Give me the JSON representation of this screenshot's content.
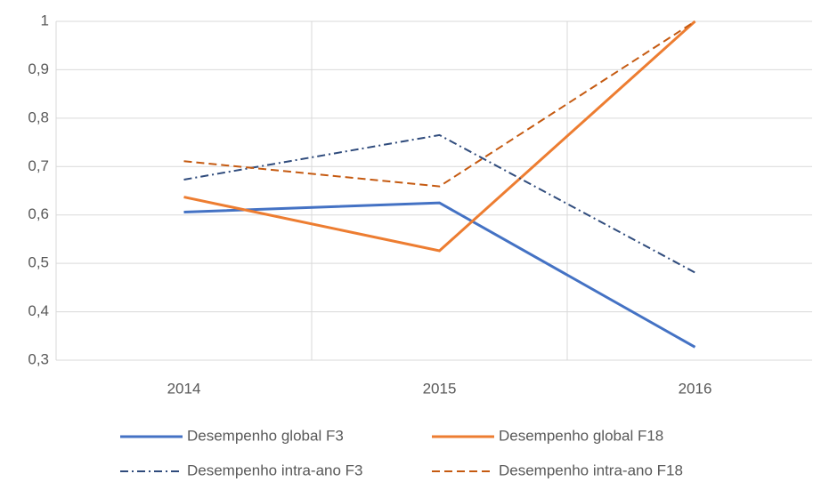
{
  "chart_data": {
    "type": "line",
    "categories": [
      "2014",
      "2015",
      "2016"
    ],
    "series": [
      {
        "name": "Desempenho global F3",
        "color": "#4472c4",
        "dash": "solid",
        "values": [
          0.606,
          0.625,
          0.327
        ]
      },
      {
        "name": "Desempenho global F18",
        "color": "#ed7d31",
        "dash": "solid",
        "values": [
          0.637,
          0.526,
          1.0
        ]
      },
      {
        "name": "Desempenho intra-ano F3",
        "color": "#2f4b7c",
        "dash": "dashdot",
        "values": [
          0.673,
          0.765,
          0.481
        ]
      },
      {
        "name": "Desempenho intra-ano F18",
        "color": "#c55a11",
        "dash": "dashed",
        "values": [
          0.711,
          0.659,
          1.0
        ]
      }
    ],
    "ylim": [
      0.3,
      1
    ],
    "yticks": [
      {
        "value": 0.3,
        "label": "0,3"
      },
      {
        "value": 0.4,
        "label": "0,4"
      },
      {
        "value": 0.5,
        "label": "0,5"
      },
      {
        "value": 0.6,
        "label": "0,6"
      },
      {
        "value": 0.7,
        "label": "0,7"
      },
      {
        "value": 0.8,
        "label": "0,8"
      },
      {
        "value": 0.9,
        "label": "0,9"
      },
      1
    ],
    "grid": true,
    "legend": "bottom"
  }
}
